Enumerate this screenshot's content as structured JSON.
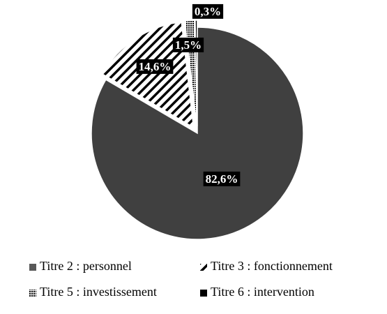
{
  "chart_data": {
    "type": "pie",
    "categories": [
      "Titre 2 : personnel",
      "Titre 3 : fonctionnement",
      "Titre 5 : investissement",
      "Titre 6 : intervention"
    ],
    "values": [
      82.6,
      14.6,
      1.5,
      0.3
    ],
    "value_labels": [
      "82,6%",
      "14,6%",
      "1,5%",
      "0,3%"
    ],
    "colors": [
      "#404040",
      "#000000",
      "#000000",
      "#000000"
    ],
    "patterns": [
      "solid",
      "diagonal",
      "dense",
      "solid"
    ],
    "legend": "bottom"
  }
}
